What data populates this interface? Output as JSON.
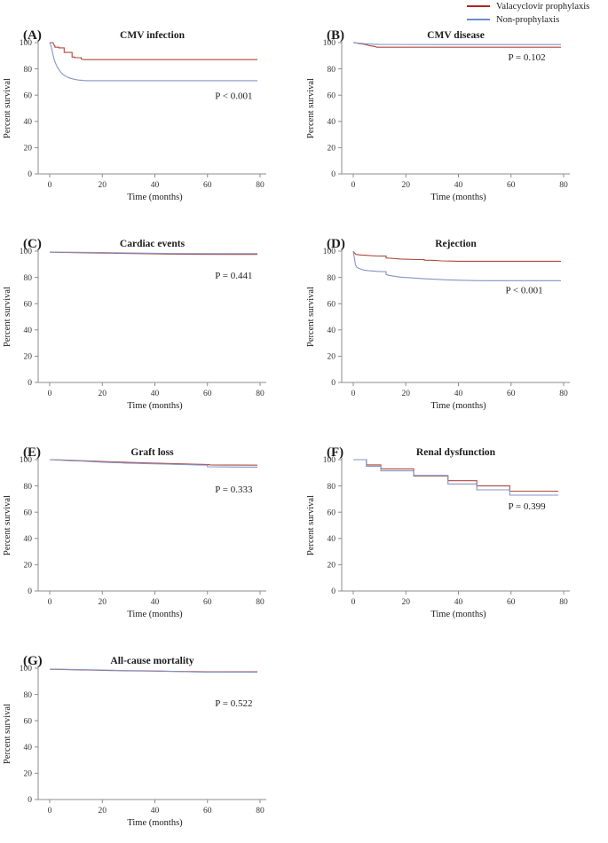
{
  "legend": {
    "items": [
      {
        "label": "Valacyclovir prophylaxis",
        "color": "#b22222"
      },
      {
        "label": "Non-prophylaxis",
        "color": "#6d8ec7"
      }
    ]
  },
  "axes": {
    "xlabel": "Time (months)",
    "ylabel": "Percent survival",
    "xticks": [
      0,
      20,
      40,
      60,
      80
    ],
    "yticks": [
      0,
      20,
      40,
      60,
      80,
      100
    ],
    "xlim": [
      0,
      80
    ],
    "ylim": [
      0,
      100
    ],
    "grid": false
  },
  "chart_data": [
    {
      "type": "line",
      "panel_label": "(A)",
      "title": "CMV infection",
      "p_value": "P < 0.001",
      "p_pos": [
        70,
        57
      ],
      "series": [
        {
          "name": "Valacyclovir prophylaxis",
          "color": "#b0483f",
          "points": [
            [
              0,
              100
            ],
            [
              1.3,
              100
            ],
            [
              1.5,
              98.5
            ],
            [
              2,
              97.5
            ],
            [
              2,
              96.5
            ],
            [
              3.5,
              96.5
            ],
            [
              3.5,
              96
            ],
            [
              5.5,
              96
            ],
            [
              5.5,
              92.5
            ],
            [
              8.5,
              92.5
            ],
            [
              8.5,
              89
            ],
            [
              9.5,
              89
            ],
            [
              9.5,
              88.5
            ],
            [
              12,
              88.5
            ],
            [
              12,
              87.5
            ],
            [
              13,
              87
            ],
            [
              79,
              87
            ]
          ]
        },
        {
          "name": "Non-prophylaxis",
          "color": "#8494c5",
          "points": [
            [
              0,
              100
            ],
            [
              0.4,
              98
            ],
            [
              0.8,
              95
            ],
            [
              1.2,
              91
            ],
            [
              1.6,
              88
            ],
            [
              2,
              85.5
            ],
            [
              2.5,
              83
            ],
            [
              3,
              81
            ],
            [
              3.5,
              79.5
            ],
            [
              4,
              78
            ],
            [
              4.5,
              76.8
            ],
            [
              5,
              75.8
            ],
            [
              6,
              74.5
            ],
            [
              7,
              73.5
            ],
            [
              8,
              72.8
            ],
            [
              9,
              72.2
            ],
            [
              10,
              71.8
            ],
            [
              11,
              71.5
            ],
            [
              12.5,
              71.2
            ],
            [
              14,
              71
            ],
            [
              79,
              71
            ]
          ]
        }
      ]
    },
    {
      "type": "line",
      "panel_label": "(B)",
      "title": "CMV disease",
      "p_value": "P = 0.102",
      "p_pos": [
        66,
        86.5
      ],
      "series": [
        {
          "name": "Valacyclovir prophylaxis",
          "color": "#b0483f",
          "points": [
            [
              0,
              100
            ],
            [
              1,
              99.8
            ],
            [
              2,
              99.3
            ],
            [
              4,
              98.8
            ],
            [
              5,
              98.3
            ],
            [
              6,
              97.8
            ],
            [
              7.5,
              97.2
            ],
            [
              8.5,
              96.8
            ],
            [
              9,
              96.5
            ],
            [
              79,
              96.5
            ]
          ]
        },
        {
          "name": "Non-prophylaxis",
          "color": "#8494c5",
          "points": [
            [
              0,
              100
            ],
            [
              2,
              99.6
            ],
            [
              4,
              99.2
            ],
            [
              6,
              98.9
            ],
            [
              8,
              98.7
            ],
            [
              10,
              98.6
            ],
            [
              79,
              98.5
            ]
          ]
        }
      ]
    },
    {
      "type": "line",
      "panel_label": "(C)",
      "title": "Cardiac events",
      "p_value": "P = 0.441",
      "p_pos": [
        70,
        79
      ],
      "series": [
        {
          "name": "Valacyclovir prophylaxis",
          "color": "#b0483f",
          "points": [
            [
              0,
              99.2
            ],
            [
              5,
              99
            ],
            [
              12,
              98.8
            ],
            [
              18,
              98.6
            ],
            [
              25,
              98.4
            ],
            [
              32,
              98.2
            ],
            [
              38,
              98
            ],
            [
              45,
              97.8
            ],
            [
              55,
              97.6
            ],
            [
              79,
              97.5
            ]
          ]
        },
        {
          "name": "Non-prophylaxis",
          "color": "#8494c5",
          "points": [
            [
              0,
              99.3
            ],
            [
              10,
              99.1
            ],
            [
              20,
              98.9
            ],
            [
              30,
              98.6
            ],
            [
              40,
              98.4
            ],
            [
              46,
              98.2
            ],
            [
              79,
              98.1
            ]
          ]
        }
      ]
    },
    {
      "type": "line",
      "panel_label": "(D)",
      "title": "Rejection",
      "p_value": "P < 0.001",
      "p_pos": [
        65,
        68
      ],
      "series": [
        {
          "name": "Valacyclovir prophylaxis",
          "color": "#b0483f",
          "points": [
            [
              0,
              100
            ],
            [
              0.5,
              98.5
            ],
            [
              1,
              97.5
            ],
            [
              2,
              97.2
            ],
            [
              3,
              97
            ],
            [
              5,
              96.8
            ],
            [
              7,
              96.5
            ],
            [
              9,
              96.3
            ],
            [
              11,
              96.2
            ],
            [
              12.5,
              96.2
            ],
            [
              12.5,
              94.8
            ],
            [
              14,
              94.6
            ],
            [
              16,
              94.3
            ],
            [
              18,
              94
            ],
            [
              21,
              93.8
            ],
            [
              24,
              93.6
            ],
            [
              27,
              93.6
            ],
            [
              27,
              93.1
            ],
            [
              31,
              93
            ],
            [
              33.5,
              92.6
            ],
            [
              37,
              92.4
            ],
            [
              40,
              92.3
            ],
            [
              79,
              92.3
            ]
          ]
        },
        {
          "name": "Non-prophylaxis",
          "color": "#8494c5",
          "points": [
            [
              0,
              100
            ],
            [
              0.4,
              95
            ],
            [
              0.8,
              90
            ],
            [
              1.2,
              88
            ],
            [
              2,
              87
            ],
            [
              3,
              86.2
            ],
            [
              4,
              85.6
            ],
            [
              5.5,
              85.2
            ],
            [
              7,
              84.9
            ],
            [
              9,
              84.6
            ],
            [
              11,
              84.4
            ],
            [
              12.5,
              84.3
            ],
            [
              12.5,
              82.2
            ],
            [
              13.5,
              81.6
            ],
            [
              15,
              81
            ],
            [
              16.5,
              80.6
            ],
            [
              18,
              80.2
            ],
            [
              20,
              79.9
            ],
            [
              23,
              79.5
            ],
            [
              26,
              79.1
            ],
            [
              29,
              78.8
            ],
            [
              32,
              78.5
            ],
            [
              35,
              78.2
            ],
            [
              38,
              78
            ],
            [
              42,
              77.8
            ],
            [
              46,
              77.6
            ],
            [
              50,
              77.5
            ],
            [
              79,
              77.5
            ]
          ]
        }
      ]
    },
    {
      "type": "line",
      "panel_label": "(E)",
      "title": "Graft loss",
      "p_value": "P = 0.333",
      "p_pos": [
        70,
        75
      ],
      "series": [
        {
          "name": "Valacyclovir prophylaxis",
          "color": "#b0483f",
          "points": [
            [
              0,
              100
            ],
            [
              4,
              99.8
            ],
            [
              8,
              99.5
            ],
            [
              12,
              99.2
            ],
            [
              16,
              99
            ],
            [
              20,
              98.6
            ],
            [
              24,
              98.3
            ],
            [
              28,
              98.1
            ],
            [
              30,
              98
            ],
            [
              34,
              97.7
            ],
            [
              38,
              97.4
            ],
            [
              42,
              97.2
            ],
            [
              46,
              97
            ],
            [
              50,
              96.8
            ],
            [
              54,
              96.6
            ],
            [
              58,
              96.4
            ],
            [
              60.5,
              96.2
            ],
            [
              61,
              96
            ],
            [
              70,
              95.9
            ],
            [
              79,
              95.8
            ]
          ]
        },
        {
          "name": "Non-prophylaxis",
          "color": "#8494c5",
          "points": [
            [
              0,
              100
            ],
            [
              4,
              99.6
            ],
            [
              8,
              99.2
            ],
            [
              12,
              98.9
            ],
            [
              16,
              98.5
            ],
            [
              20,
              98.1
            ],
            [
              24,
              97.8
            ],
            [
              27.5,
              97.6
            ],
            [
              28,
              97.4
            ],
            [
              32,
              97.2
            ],
            [
              36,
              97
            ],
            [
              40,
              96.8
            ],
            [
              44,
              96.6
            ],
            [
              48,
              96.4
            ],
            [
              52,
              96.2
            ],
            [
              56,
              96
            ],
            [
              60,
              95.8
            ],
            [
              60,
              94.6
            ],
            [
              70,
              94.4
            ],
            [
              79,
              94.3
            ]
          ]
        }
      ]
    },
    {
      "type": "line",
      "panel_label": "(F)",
      "title": "Renal dysfunction",
      "p_value": "P = 0.399",
      "p_pos": [
        66,
        62
      ],
      "series": [
        {
          "name": "Valacyclovir prophylaxis",
          "color": "#b0483f",
          "points": [
            [
              0,
              100
            ],
            [
              5,
              100
            ],
            [
              5,
              96
            ],
            [
              10.5,
              96
            ],
            [
              10.5,
              93
            ],
            [
              23,
              93
            ],
            [
              23,
              87.5
            ],
            [
              36,
              87.5
            ],
            [
              36,
              84
            ],
            [
              47,
              84
            ],
            [
              47,
              80
            ],
            [
              59.5,
              80
            ],
            [
              59.5,
              76
            ],
            [
              78,
              76
            ]
          ]
        },
        {
          "name": "Non-prophylaxis",
          "color": "#8494c5",
          "points": [
            [
              0,
              100
            ],
            [
              5,
              100
            ],
            [
              5,
              95
            ],
            [
              10.5,
              95
            ],
            [
              10.5,
              91.5
            ],
            [
              23,
              91.5
            ],
            [
              23,
              88
            ],
            [
              36,
              88
            ],
            [
              36,
              81.5
            ],
            [
              47,
              81.5
            ],
            [
              47,
              77
            ],
            [
              59.5,
              77
            ],
            [
              59.5,
              73
            ],
            [
              78,
              73
            ]
          ]
        }
      ]
    },
    {
      "type": "line",
      "panel_label": "(G)",
      "title": "All-cause mortality",
      "p_value": "P = 0.522",
      "p_pos": [
        70,
        71
      ],
      "series": [
        {
          "name": "Valacyclovir prophylaxis",
          "color": "#b0483f",
          "points": [
            [
              0,
              99.2
            ],
            [
              5,
              99
            ],
            [
              10,
              98.8
            ],
            [
              15,
              98.6
            ],
            [
              20,
              98.4
            ],
            [
              25,
              98.2
            ],
            [
              30,
              98
            ],
            [
              35,
              97.9
            ],
            [
              40,
              97.8
            ],
            [
              45,
              97.6
            ],
            [
              50,
              97.5
            ],
            [
              55,
              97.4
            ],
            [
              60,
              97.3
            ],
            [
              79,
              97.2
            ]
          ]
        },
        {
          "name": "Non-prophylaxis",
          "color": "#8494c5",
          "points": [
            [
              0,
              99.3
            ],
            [
              5,
              99.2
            ],
            [
              10,
              99
            ],
            [
              15,
              98.8
            ],
            [
              20,
              98.6
            ],
            [
              25,
              98.4
            ],
            [
              30,
              98.2
            ],
            [
              35,
              98.1
            ],
            [
              40,
              98
            ],
            [
              44,
              97.8
            ],
            [
              48,
              97.5
            ],
            [
              52,
              97.3
            ],
            [
              56,
              97.1
            ],
            [
              60,
              97
            ],
            [
              79,
              96.9
            ]
          ]
        }
      ]
    }
  ]
}
